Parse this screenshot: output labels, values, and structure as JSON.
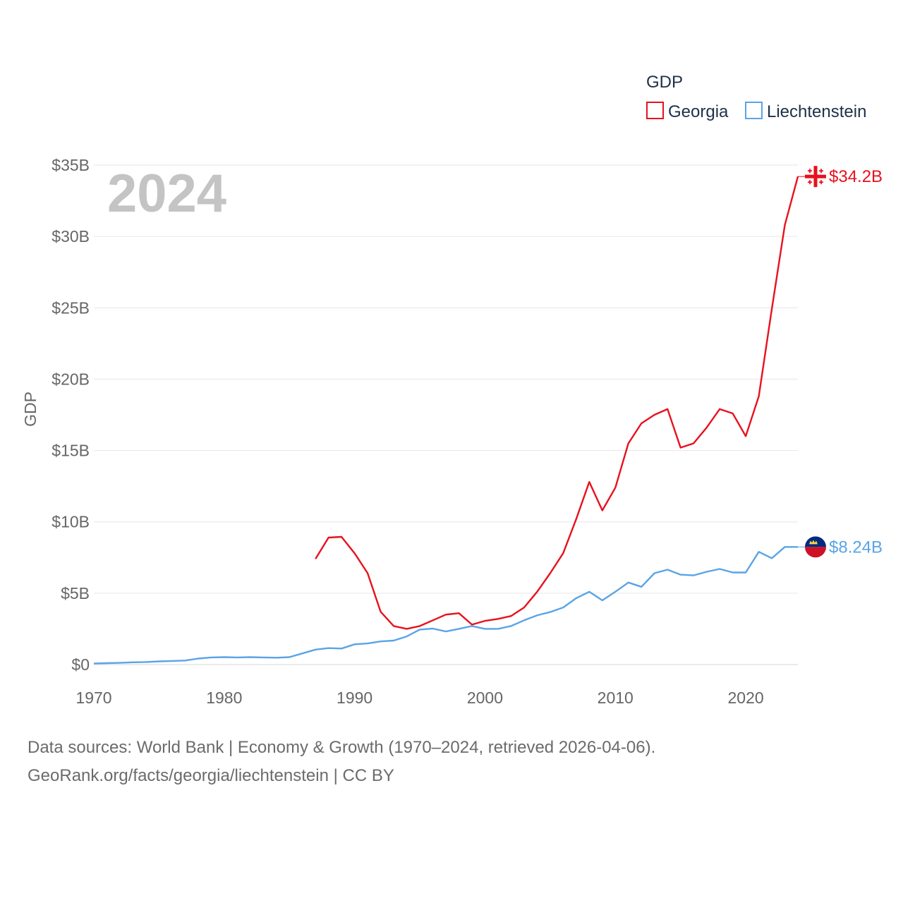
{
  "chart_data": {
    "type": "line",
    "year_stamp": "2024",
    "ylabel": "GDP",
    "xlim": [
      1970,
      2024
    ],
    "ylim": [
      0,
      35
    ],
    "x_ticks": [
      {
        "value": 1970,
        "label": "1970"
      },
      {
        "value": 1980,
        "label": "1980"
      },
      {
        "value": 1990,
        "label": "1990"
      },
      {
        "value": 2000,
        "label": "2000"
      },
      {
        "value": 2010,
        "label": "2010"
      },
      {
        "value": 2020,
        "label": "2020"
      }
    ],
    "y_ticks": [
      {
        "value": 0,
        "label": "$0"
      },
      {
        "value": 5,
        "label": "$5B"
      },
      {
        "value": 10,
        "label": "$10B"
      },
      {
        "value": 15,
        "label": "$15B"
      },
      {
        "value": 20,
        "label": "$20B"
      },
      {
        "value": 25,
        "label": "$25B"
      },
      {
        "value": 30,
        "label": "$30B"
      },
      {
        "value": 35,
        "label": "$35B"
      }
    ],
    "legend": {
      "title": "GDP",
      "placement": "top-right"
    },
    "series": [
      {
        "name": "Georgia",
        "color": "#e8111d",
        "end_label": "$34.2B",
        "flag": "georgia-flag",
        "x": [
          1987,
          1988,
          1989,
          1990,
          1991,
          1992,
          1993,
          1994,
          1995,
          1996,
          1997,
          1998,
          1999,
          2000,
          2001,
          2002,
          2003,
          2004,
          2005,
          2006,
          2007,
          2008,
          2009,
          2010,
          2011,
          2012,
          2013,
          2014,
          2015,
          2016,
          2017,
          2018,
          2019,
          2020,
          2021,
          2022,
          2023,
          2024
        ],
        "values": [
          7.4,
          8.9,
          8.95,
          7.8,
          6.4,
          3.7,
          2.7,
          2.5,
          2.7,
          3.1,
          3.5,
          3.6,
          2.8,
          3.06,
          3.2,
          3.4,
          4.0,
          5.1,
          6.4,
          7.8,
          10.2,
          12.8,
          10.8,
          12.4,
          15.5,
          16.9,
          17.5,
          17.9,
          15.2,
          15.5,
          16.6,
          17.9,
          17.6,
          16.0,
          18.8,
          24.9,
          30.8,
          34.2
        ]
      },
      {
        "name": "Liechtenstein",
        "color": "#5aa4e6",
        "end_label": "$8.24B",
        "flag": "liechtenstein-flag",
        "x": [
          1970,
          1971,
          1972,
          1973,
          1974,
          1975,
          1976,
          1977,
          1978,
          1979,
          1980,
          1981,
          1982,
          1983,
          1984,
          1985,
          1986,
          1987,
          1988,
          1989,
          1990,
          1991,
          1992,
          1993,
          1994,
          1995,
          1996,
          1997,
          1998,
          1999,
          2000,
          2001,
          2002,
          2003,
          2004,
          2005,
          2006,
          2007,
          2008,
          2009,
          2010,
          2011,
          2012,
          2013,
          2014,
          2015,
          2016,
          2017,
          2018,
          2019,
          2020,
          2021,
          2022,
          2023,
          2024
        ],
        "values": [
          0.08,
          0.1,
          0.12,
          0.16,
          0.18,
          0.22,
          0.25,
          0.28,
          0.42,
          0.5,
          0.52,
          0.5,
          0.52,
          0.5,
          0.48,
          0.52,
          0.78,
          1.05,
          1.15,
          1.12,
          1.42,
          1.48,
          1.62,
          1.68,
          1.97,
          2.45,
          2.52,
          2.32,
          2.5,
          2.7,
          2.5,
          2.5,
          2.7,
          3.1,
          3.45,
          3.68,
          4.0,
          4.65,
          5.1,
          4.5,
          5.1,
          5.75,
          5.45,
          6.4,
          6.65,
          6.3,
          6.25,
          6.5,
          6.7,
          6.45,
          6.45,
          7.9,
          7.45,
          8.24,
          8.24
        ]
      }
    ]
  },
  "footer": {
    "line1": "Data sources: World Bank | Economy & Growth (1970–2024, retrieved 2026-04-06).",
    "line2": "GeoRank.org/facts/georgia/liechtenstein | CC BY"
  }
}
